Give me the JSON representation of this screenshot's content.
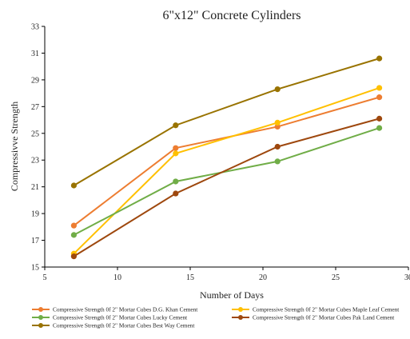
{
  "chart_data": {
    "type": "line",
    "title": "6\"x12\"  Concrete  Cylinders",
    "xlabel": "Number of Days",
    "ylabel": "Compressivve Strength",
    "xlim": [
      5,
      30
    ],
    "ylim": [
      15,
      33
    ],
    "xticks": [
      "5",
      "10",
      "15",
      "20",
      "25",
      "30"
    ],
    "yticks": [
      "15",
      "17",
      "19",
      "21",
      "23",
      "25",
      "27",
      "29",
      "31",
      "33"
    ],
    "grid": false,
    "legend_position": "bottom",
    "x": [
      7,
      14,
      21,
      28
    ],
    "series": [
      {
        "name": "Compressive Strength 0f 2\" Mortar Cubes D.G. Khan Cement",
        "color": "#ED7D31",
        "values": [
          18.1,
          23.9,
          25.5,
          27.7
        ]
      },
      {
        "name": "Compressive Strength 0f 2\" Mortar Cubes Maple Leaf Cement",
        "color": "#FFC000",
        "values": [
          16.0,
          23.5,
          25.8,
          28.4
        ]
      },
      {
        "name": "Compressive Strength 0f 2\" Mortar Cubes Lucky Cement",
        "color": "#70AD47",
        "values": [
          17.4,
          21.4,
          22.9,
          25.4
        ]
      },
      {
        "name": "Compressive Strength 0f 2\" Mortar Cubes Pak Land Cement",
        "color": "#9E480E",
        "values": [
          15.8,
          20.5,
          24.0,
          26.1
        ]
      },
      {
        "name": "Compressive Strength 0f 2\" Mortar Cubes Best Way Cement",
        "color": "#997300",
        "values": [
          21.1,
          25.6,
          28.3,
          30.6
        ]
      }
    ]
  }
}
